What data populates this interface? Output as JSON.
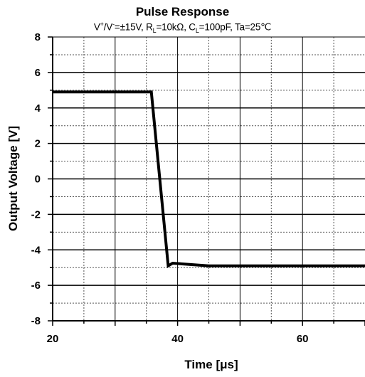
{
  "chart_data": {
    "type": "line",
    "title": "Pulse Response",
    "subtitle": {
      "v_label": "V",
      "v_plus": "+",
      "v_sep": "/V",
      "v_minus": "-",
      "v_value": "=±15V, R",
      "rl_sub": "L",
      "rl_value": "=10kΩ, C",
      "cl_sub": "L",
      "cl_value": "=100pF, Ta=25℃"
    },
    "xlabel": "Time  [μs]",
    "ylabel": "Output Voltage  [V]",
    "xlim": [
      20,
      70
    ],
    "ylim": [
      -8,
      8
    ],
    "x_ticks": [
      "20",
      "40",
      "60"
    ],
    "y_ticks": [
      "8",
      "6",
      "4",
      "2",
      "0",
      "-2",
      "-4",
      "-6",
      "-8"
    ],
    "grid": true,
    "series": [
      {
        "color": "#000000",
        "x": [
          20,
          35.8,
          38.5,
          39.2,
          45,
          70
        ],
        "y": [
          4.9,
          4.9,
          -4.9,
          -4.75,
          -4.9,
          -4.9
        ]
      }
    ]
  }
}
